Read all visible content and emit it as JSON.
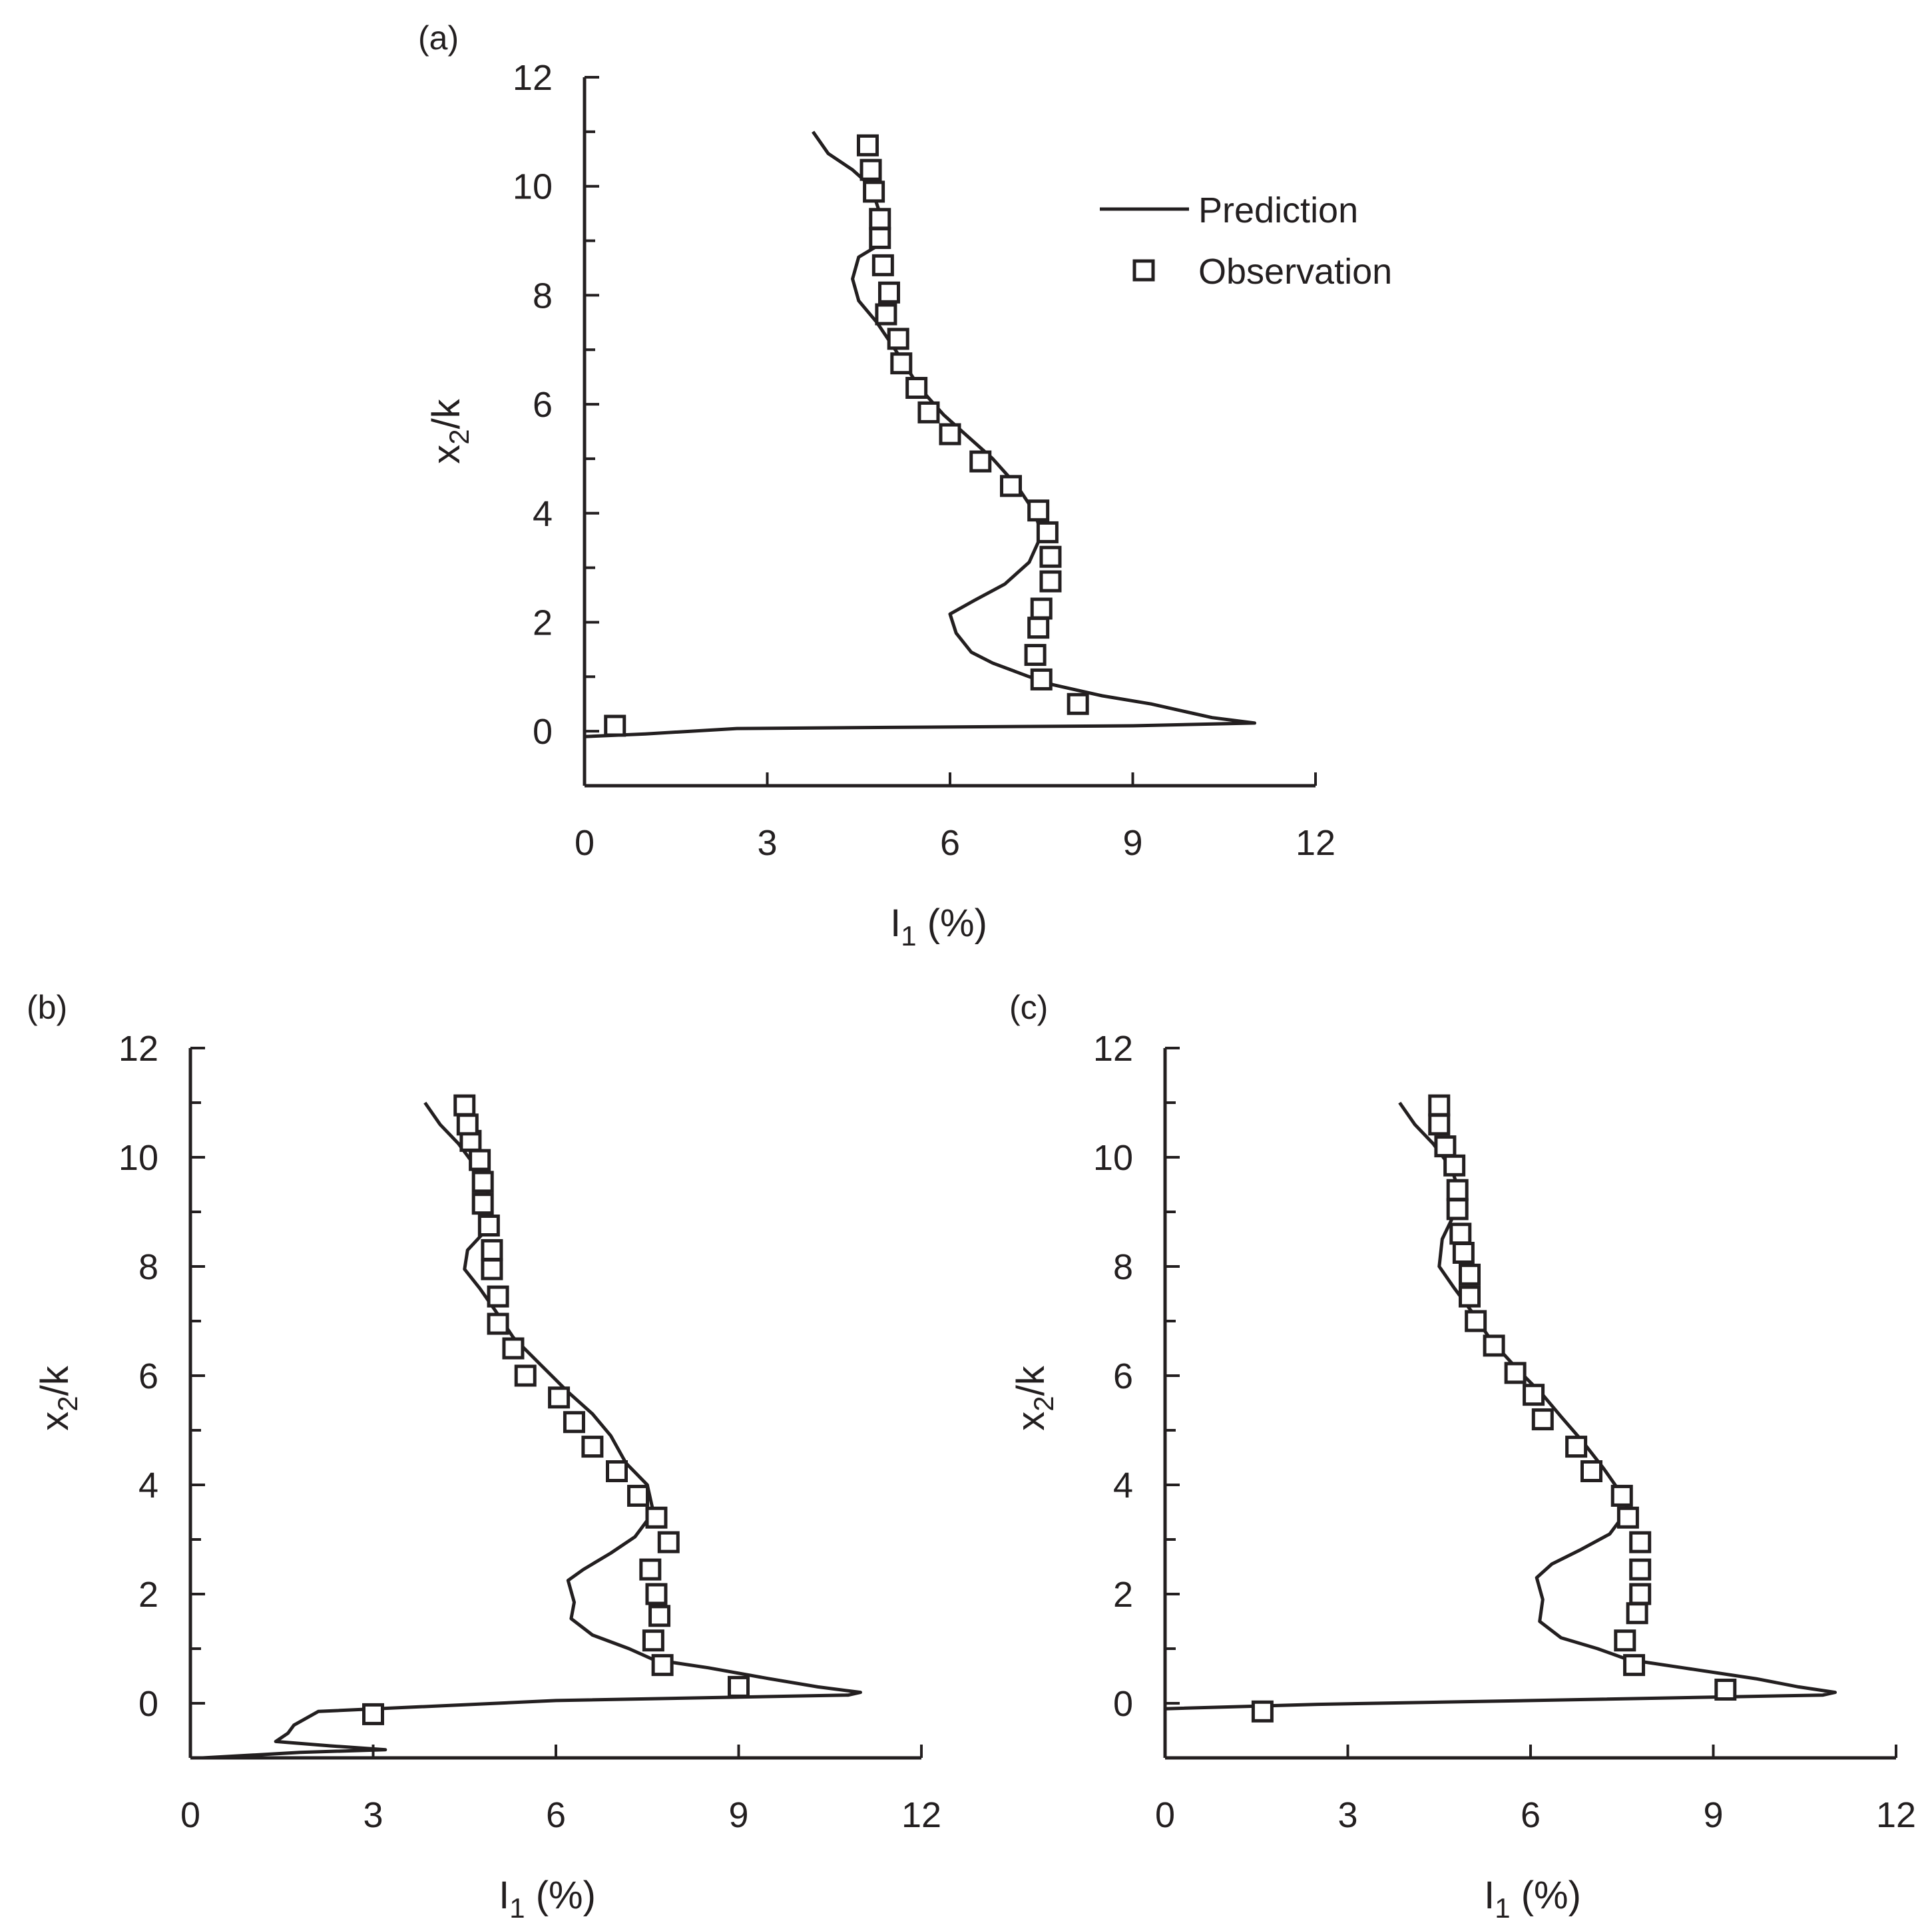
{
  "legend": {
    "placement": "top-right of panel (a)",
    "items": [
      {
        "label": "Prediction",
        "marker": "line"
      },
      {
        "label": "Observation",
        "marker": "open-square"
      }
    ]
  },
  "chart_data": [
    {
      "panel": "(a)",
      "type": "line",
      "xlabel_main": "I",
      "xlabel_sub": "1",
      "xlabel_tail": " (%)",
      "ylabel_main": "x",
      "ylabel_sub": "2",
      "ylabel_tail": "/k",
      "xlim": [
        0,
        12
      ],
      "ylim": [
        -1,
        12
      ],
      "xticks": [
        0,
        3,
        6,
        9,
        12
      ],
      "yticks": [
        0,
        2,
        4,
        6,
        8,
        10,
        12
      ],
      "grid": false,
      "series": [
        {
          "kind": "prediction",
          "points": [
            [
              3.75,
              11.0
            ],
            [
              4.0,
              10.6
            ],
            [
              4.4,
              10.3
            ],
            [
              4.7,
              10.0
            ],
            [
              4.85,
              9.5
            ],
            [
              4.8,
              8.9
            ],
            [
              4.5,
              8.7
            ],
            [
              4.4,
              8.3
            ],
            [
              4.5,
              7.9
            ],
            [
              4.8,
              7.5
            ],
            [
              5.1,
              7.0
            ],
            [
              5.5,
              6.3
            ],
            [
              5.9,
              5.8
            ],
            [
              6.3,
              5.4
            ],
            [
              6.7,
              5.0
            ],
            [
              7.1,
              4.5
            ],
            [
              7.4,
              4.0
            ],
            [
              7.5,
              3.6
            ],
            [
              7.3,
              3.1
            ],
            [
              6.9,
              2.7
            ],
            [
              6.4,
              2.4
            ],
            [
              6.0,
              2.15
            ],
            [
              6.1,
              1.8
            ],
            [
              6.35,
              1.45
            ],
            [
              6.7,
              1.25
            ],
            [
              7.3,
              1.0
            ],
            [
              7.7,
              0.85
            ],
            [
              8.5,
              0.65
            ],
            [
              9.3,
              0.5
            ],
            [
              9.9,
              0.35
            ],
            [
              10.3,
              0.25
            ],
            [
              11.0,
              0.15
            ],
            [
              9.0,
              0.1
            ],
            [
              5.0,
              0.07
            ],
            [
              2.5,
              0.05
            ],
            [
              1.0,
              -0.05
            ],
            [
              0.0,
              -0.1
            ]
          ]
        },
        {
          "kind": "observation",
          "points": [
            [
              0.5,
              0.1
            ],
            [
              8.1,
              0.5
            ],
            [
              7.5,
              0.95
            ],
            [
              7.4,
              1.4
            ],
            [
              7.45,
              1.9
            ],
            [
              7.5,
              2.25
            ],
            [
              7.65,
              2.75
            ],
            [
              7.65,
              3.2
            ],
            [
              7.6,
              3.65
            ],
            [
              7.45,
              4.05
            ],
            [
              7.0,
              4.5
            ],
            [
              6.5,
              4.95
            ],
            [
              6.0,
              5.45
            ],
            [
              5.65,
              5.85
            ],
            [
              5.45,
              6.3
            ],
            [
              5.2,
              6.75
            ],
            [
              5.15,
              7.2
            ],
            [
              4.95,
              7.65
            ],
            [
              5.0,
              8.05
            ],
            [
              4.9,
              8.55
            ],
            [
              4.85,
              9.05
            ],
            [
              4.85,
              9.4
            ],
            [
              4.75,
              9.9
            ],
            [
              4.7,
              10.3
            ],
            [
              4.65,
              10.75
            ]
          ]
        }
      ]
    },
    {
      "panel": "(b)",
      "type": "line",
      "xlabel_main": "I",
      "xlabel_sub": "1",
      "xlabel_tail": " (%)",
      "ylabel_main": "x",
      "ylabel_sub": "2",
      "ylabel_tail": "/k",
      "xlim": [
        0,
        12
      ],
      "ylim": [
        -1,
        12
      ],
      "xticks": [
        0,
        3,
        6,
        9,
        12
      ],
      "yticks": [
        0,
        2,
        4,
        6,
        8,
        10,
        12
      ],
      "grid": false,
      "series": [
        {
          "kind": "prediction",
          "points": [
            [
              3.85,
              11.0
            ],
            [
              4.1,
              10.6
            ],
            [
              4.4,
              10.25
            ],
            [
              4.7,
              9.8
            ],
            [
              4.9,
              9.3
            ],
            [
              4.8,
              8.6
            ],
            [
              4.55,
              8.3
            ],
            [
              4.5,
              7.95
            ],
            [
              4.75,
              7.6
            ],
            [
              5.0,
              7.2
            ],
            [
              5.3,
              6.7
            ],
            [
              5.75,
              6.2
            ],
            [
              6.2,
              5.7
            ],
            [
              6.6,
              5.3
            ],
            [
              6.9,
              4.9
            ],
            [
              7.15,
              4.4
            ],
            [
              7.5,
              4.0
            ],
            [
              7.6,
              3.5
            ],
            [
              7.3,
              3.05
            ],
            [
              6.9,
              2.75
            ],
            [
              6.45,
              2.45
            ],
            [
              6.2,
              2.25
            ],
            [
              6.3,
              1.85
            ],
            [
              6.25,
              1.55
            ],
            [
              6.6,
              1.25
            ],
            [
              7.2,
              1.0
            ],
            [
              7.6,
              0.8
            ],
            [
              8.5,
              0.65
            ],
            [
              9.5,
              0.45
            ],
            [
              10.3,
              0.3
            ],
            [
              11.0,
              0.2
            ],
            [
              10.8,
              0.15
            ],
            [
              6.0,
              0.05
            ],
            [
              2.1,
              -0.15
            ],
            [
              1.7,
              -0.4
            ],
            [
              1.6,
              -0.55
            ],
            [
              1.4,
              -0.7
            ],
            [
              2.3,
              -0.78
            ],
            [
              3.2,
              -0.85
            ],
            [
              1.8,
              -0.9
            ],
            [
              0.2,
              -1.0
            ]
          ]
        },
        {
          "kind": "observation",
          "points": [
            [
              3.0,
              -0.2
            ],
            [
              9.0,
              0.3
            ],
            [
              7.75,
              0.7
            ],
            [
              7.6,
              1.15
            ],
            [
              7.7,
              1.6
            ],
            [
              7.65,
              2.0
            ],
            [
              7.55,
              2.45
            ],
            [
              7.85,
              2.95
            ],
            [
              7.65,
              3.4
            ],
            [
              7.35,
              3.8
            ],
            [
              7.0,
              4.25
            ],
            [
              6.6,
              4.7
            ],
            [
              6.3,
              5.15
            ],
            [
              6.05,
              5.6
            ],
            [
              5.5,
              6.0
            ],
            [
              5.3,
              6.5
            ],
            [
              5.05,
              6.95
            ],
            [
              5.05,
              7.45
            ],
            [
              4.95,
              7.95
            ],
            [
              4.95,
              8.3
            ],
            [
              4.9,
              8.75
            ],
            [
              4.8,
              9.15
            ],
            [
              4.8,
              9.55
            ],
            [
              4.75,
              9.95
            ],
            [
              4.6,
              10.3
            ],
            [
              4.55,
              10.6
            ],
            [
              4.5,
              10.95
            ]
          ]
        }
      ]
    },
    {
      "panel": "(c)",
      "type": "line",
      "xlabel_main": "I",
      "xlabel_sub": "1",
      "xlabel_tail": " (%)",
      "ylabel_main": "x",
      "ylabel_sub": "2",
      "ylabel_tail": "/k",
      "xlim": [
        0,
        12
      ],
      "ylim": [
        -1,
        12
      ],
      "xticks": [
        0,
        3,
        6,
        9,
        12
      ],
      "yticks": [
        0,
        2,
        4,
        6,
        8,
        10,
        12
      ],
      "grid": false,
      "series": [
        {
          "kind": "prediction",
          "points": [
            [
              3.85,
              11.0
            ],
            [
              4.1,
              10.6
            ],
            [
              4.4,
              10.25
            ],
            [
              4.7,
              9.8
            ],
            [
              4.85,
              9.3
            ],
            [
              4.7,
              8.85
            ],
            [
              4.55,
              8.5
            ],
            [
              4.5,
              8.0
            ],
            [
              4.75,
              7.6
            ],
            [
              5.05,
              7.15
            ],
            [
              5.35,
              6.65
            ],
            [
              5.8,
              6.1
            ],
            [
              6.2,
              5.65
            ],
            [
              6.5,
              5.25
            ],
            [
              6.85,
              4.8
            ],
            [
              7.2,
              4.3
            ],
            [
              7.45,
              3.9
            ],
            [
              7.6,
              3.55
            ],
            [
              7.3,
              3.1
            ],
            [
              6.8,
              2.8
            ],
            [
              6.35,
              2.55
            ],
            [
              6.1,
              2.3
            ],
            [
              6.2,
              1.9
            ],
            [
              6.15,
              1.5
            ],
            [
              6.5,
              1.2
            ],
            [
              7.1,
              1.0
            ],
            [
              7.6,
              0.8
            ],
            [
              8.5,
              0.65
            ],
            [
              9.7,
              0.45
            ],
            [
              10.4,
              0.3
            ],
            [
              11.0,
              0.2
            ],
            [
              10.8,
              0.15
            ],
            [
              6.0,
              0.05
            ],
            [
              2.5,
              -0.02
            ],
            [
              0.0,
              -0.1
            ]
          ]
        },
        {
          "kind": "observation",
          "points": [
            [
              1.6,
              -0.15
            ],
            [
              9.2,
              0.25
            ],
            [
              7.7,
              0.7
            ],
            [
              7.55,
              1.15
            ],
            [
              7.75,
              1.65
            ],
            [
              7.8,
              2.0
            ],
            [
              7.8,
              2.45
            ],
            [
              7.8,
              2.95
            ],
            [
              7.6,
              3.4
            ],
            [
              7.5,
              3.8
            ],
            [
              7.0,
              4.25
            ],
            [
              6.75,
              4.7
            ],
            [
              6.2,
              5.2
            ],
            [
              6.05,
              5.65
            ],
            [
              5.75,
              6.05
            ],
            [
              5.4,
              6.55
            ],
            [
              5.1,
              7.0
            ],
            [
              5.0,
              7.45
            ],
            [
              5.0,
              7.85
            ],
            [
              4.9,
              8.25
            ],
            [
              4.85,
              8.6
            ],
            [
              4.8,
              9.05
            ],
            [
              4.8,
              9.4
            ],
            [
              4.75,
              9.85
            ],
            [
              4.6,
              10.2
            ],
            [
              4.5,
              10.6
            ],
            [
              4.5,
              10.95
            ]
          ]
        }
      ]
    }
  ]
}
